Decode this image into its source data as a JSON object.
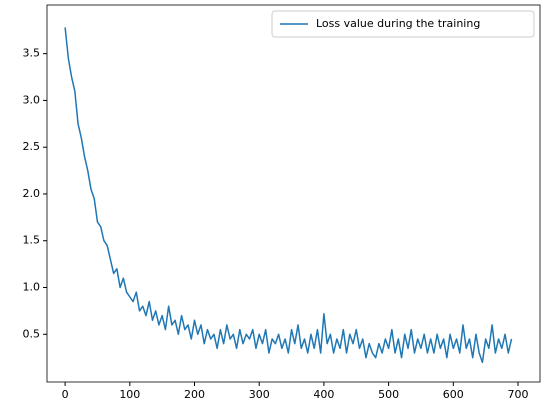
{
  "chart_data": {
    "type": "line",
    "x": [
      0,
      5,
      10,
      15,
      20,
      25,
      30,
      35,
      40,
      45,
      50,
      55,
      60,
      65,
      70,
      75,
      80,
      85,
      90,
      95,
      100,
      105,
      110,
      115,
      120,
      125,
      130,
      135,
      140,
      145,
      150,
      155,
      160,
      165,
      170,
      175,
      180,
      185,
      190,
      195,
      200,
      205,
      210,
      215,
      220,
      225,
      230,
      235,
      240,
      245,
      250,
      255,
      260,
      265,
      270,
      275,
      280,
      285,
      290,
      295,
      300,
      305,
      310,
      315,
      320,
      325,
      330,
      335,
      340,
      345,
      350,
      355,
      360,
      365,
      370,
      375,
      380,
      385,
      390,
      395,
      400,
      405,
      410,
      415,
      420,
      425,
      430,
      435,
      440,
      445,
      450,
      455,
      460,
      465,
      470,
      475,
      480,
      485,
      490,
      495,
      500,
      505,
      510,
      515,
      520,
      525,
      530,
      535,
      540,
      545,
      550,
      555,
      560,
      565,
      570,
      575,
      580,
      585,
      590,
      595,
      600,
      605,
      610,
      615,
      620,
      625,
      630,
      635,
      640,
      645,
      650,
      655,
      660,
      665,
      670,
      675,
      680,
      685,
      690
    ],
    "series": [
      {
        "name": "Loss value during the training",
        "color": "#1f77b4",
        "values": [
          3.78,
          3.45,
          3.25,
          3.1,
          2.75,
          2.6,
          2.4,
          2.25,
          2.05,
          1.95,
          1.7,
          1.65,
          1.5,
          1.45,
          1.3,
          1.15,
          1.2,
          1.0,
          1.1,
          0.95,
          0.9,
          0.85,
          0.95,
          0.75,
          0.8,
          0.7,
          0.85,
          0.65,
          0.75,
          0.6,
          0.7,
          0.55,
          0.8,
          0.6,
          0.65,
          0.5,
          0.7,
          0.55,
          0.6,
          0.45,
          0.65,
          0.5,
          0.6,
          0.4,
          0.55,
          0.45,
          0.5,
          0.35,
          0.55,
          0.4,
          0.6,
          0.45,
          0.5,
          0.35,
          0.55,
          0.4,
          0.5,
          0.45,
          0.55,
          0.35,
          0.5,
          0.4,
          0.55,
          0.3,
          0.45,
          0.4,
          0.5,
          0.35,
          0.45,
          0.3,
          0.55,
          0.4,
          0.6,
          0.35,
          0.45,
          0.3,
          0.5,
          0.35,
          0.55,
          0.3,
          0.72,
          0.4,
          0.5,
          0.3,
          0.45,
          0.35,
          0.55,
          0.3,
          0.5,
          0.4,
          0.55,
          0.35,
          0.45,
          0.25,
          0.4,
          0.3,
          0.25,
          0.4,
          0.3,
          0.45,
          0.35,
          0.55,
          0.3,
          0.45,
          0.25,
          0.5,
          0.35,
          0.55,
          0.3,
          0.45,
          0.35,
          0.5,
          0.3,
          0.45,
          0.3,
          0.5,
          0.35,
          0.45,
          0.25,
          0.5,
          0.35,
          0.45,
          0.3,
          0.6,
          0.35,
          0.45,
          0.25,
          0.5,
          0.3,
          0.2,
          0.45,
          0.35,
          0.6,
          0.3,
          0.45,
          0.35,
          0.5,
          0.3,
          0.45
        ]
      }
    ],
    "xlim": [
      -28,
      734
    ],
    "xticks": [
      0,
      100,
      200,
      300,
      400,
      500,
      600,
      700
    ],
    "ylim": [
      -0.01,
      4.02
    ],
    "yticks": [
      0.5,
      {
        "value": 1,
        "label": "1.0"
      },
      1.5,
      {
        "value": 2,
        "label": "2.0"
      },
      2.5,
      {
        "value": 3,
        "label": "3.0"
      },
      3.5
    ],
    "legend": "upper right"
  }
}
